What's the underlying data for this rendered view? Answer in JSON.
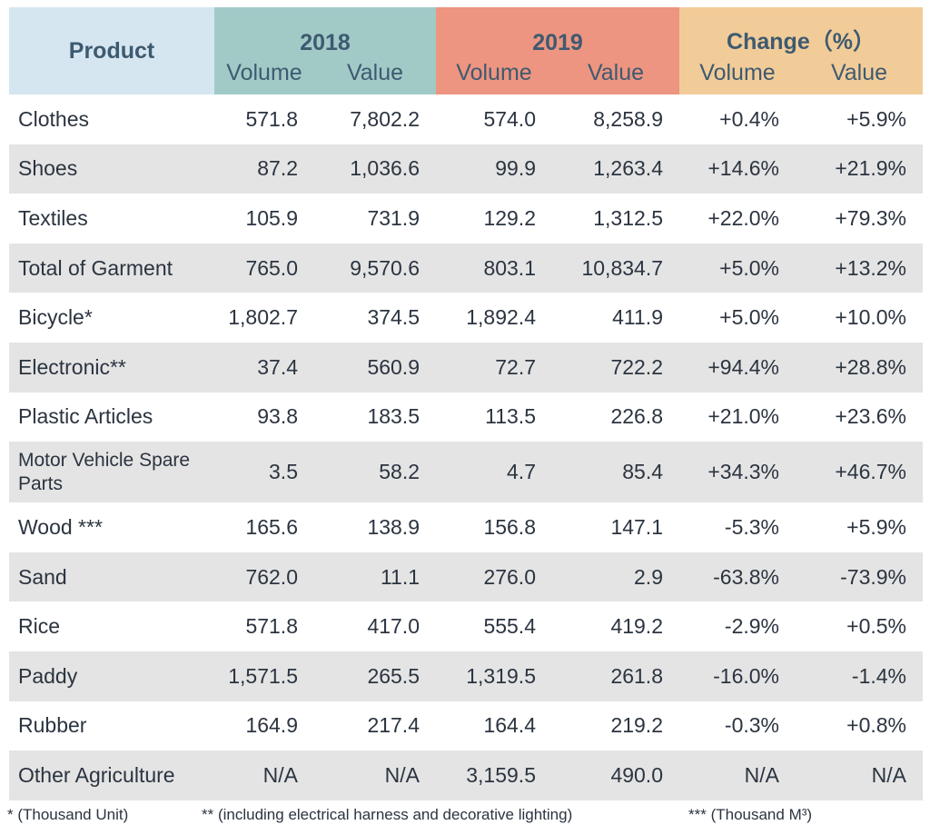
{
  "chart_data": {
    "type": "table",
    "header": {
      "product": "Product",
      "groups": [
        "2018",
        "2019",
        "Change（%）"
      ],
      "subcolumns": [
        "Volume",
        "Value",
        "Volume",
        "Value",
        "Volume",
        "Value"
      ]
    },
    "rows": [
      {
        "name": "Clothes",
        "values": [
          "571.8",
          "7,802.2",
          "574.0",
          "8,258.9",
          "+0.4%",
          "+5.9%"
        ]
      },
      {
        "name": "Shoes",
        "values": [
          "87.2",
          "1,036.6",
          "99.9",
          "1,263.4",
          "+14.6%",
          "+21.9%"
        ]
      },
      {
        "name": "Textiles",
        "values": [
          "105.9",
          "731.9",
          "129.2",
          "1,312.5",
          "+22.0%",
          "+79.3%"
        ]
      },
      {
        "name": "Total of Garment",
        "values": [
          "765.0",
          "9,570.6",
          "803.1",
          "10,834.7",
          "+5.0%",
          "+13.2%"
        ]
      },
      {
        "name": "Bicycle*",
        "values": [
          "1,802.7",
          "374.5",
          "1,892.4",
          "411.9",
          "+5.0%",
          "+10.0%"
        ]
      },
      {
        "name": "Electronic**",
        "values": [
          "37.4",
          "560.9",
          "72.7",
          "722.2",
          "+94.4%",
          "+28.8%"
        ]
      },
      {
        "name": "Plastic Articles",
        "values": [
          "93.8",
          "183.5",
          "113.5",
          "226.8",
          "+21.0%",
          "+23.6%"
        ]
      },
      {
        "name": "Motor Vehicle Spare Parts",
        "values": [
          "3.5",
          "58.2",
          "4.7",
          "85.4",
          "+34.3%",
          "+46.7%"
        ]
      },
      {
        "name": "Wood ***",
        "values": [
          "165.6",
          "138.9",
          "156.8",
          "147.1",
          "-5.3%",
          "+5.9%"
        ]
      },
      {
        "name": "Sand",
        "values": [
          "762.0",
          "11.1",
          "276.0",
          "2.9",
          "-63.8%",
          "-73.9%"
        ]
      },
      {
        "name": "Rice",
        "values": [
          "571.8",
          "417.0",
          "555.4",
          "419.2",
          "-2.9%",
          "+0.5%"
        ]
      },
      {
        "name": "Paddy",
        "values": [
          "1,571.5",
          "265.5",
          "1,319.5",
          "261.8",
          "-16.0%",
          "-1.4%"
        ]
      },
      {
        "name": "Rubber",
        "values": [
          "164.9",
          "217.4",
          "164.4",
          "219.2",
          "-0.3%",
          "+0.8%"
        ]
      },
      {
        "name": "Other Agriculture",
        "values": [
          "N/A",
          "N/A",
          "3,159.5",
          "490.0",
          "N/A",
          "N/A"
        ]
      }
    ],
    "footnotes": [
      "* (Thousand Unit)",
      "** (including electrical harness and decorative lighting)",
      "*** (Thousand M³)"
    ],
    "colors": {
      "product_header": "#d5e6f1",
      "header_2018": "#a1cac7",
      "header_2019": "#ed9580",
      "header_change": "#f2cc98",
      "row_stripe": "#e4e4e4"
    }
  }
}
